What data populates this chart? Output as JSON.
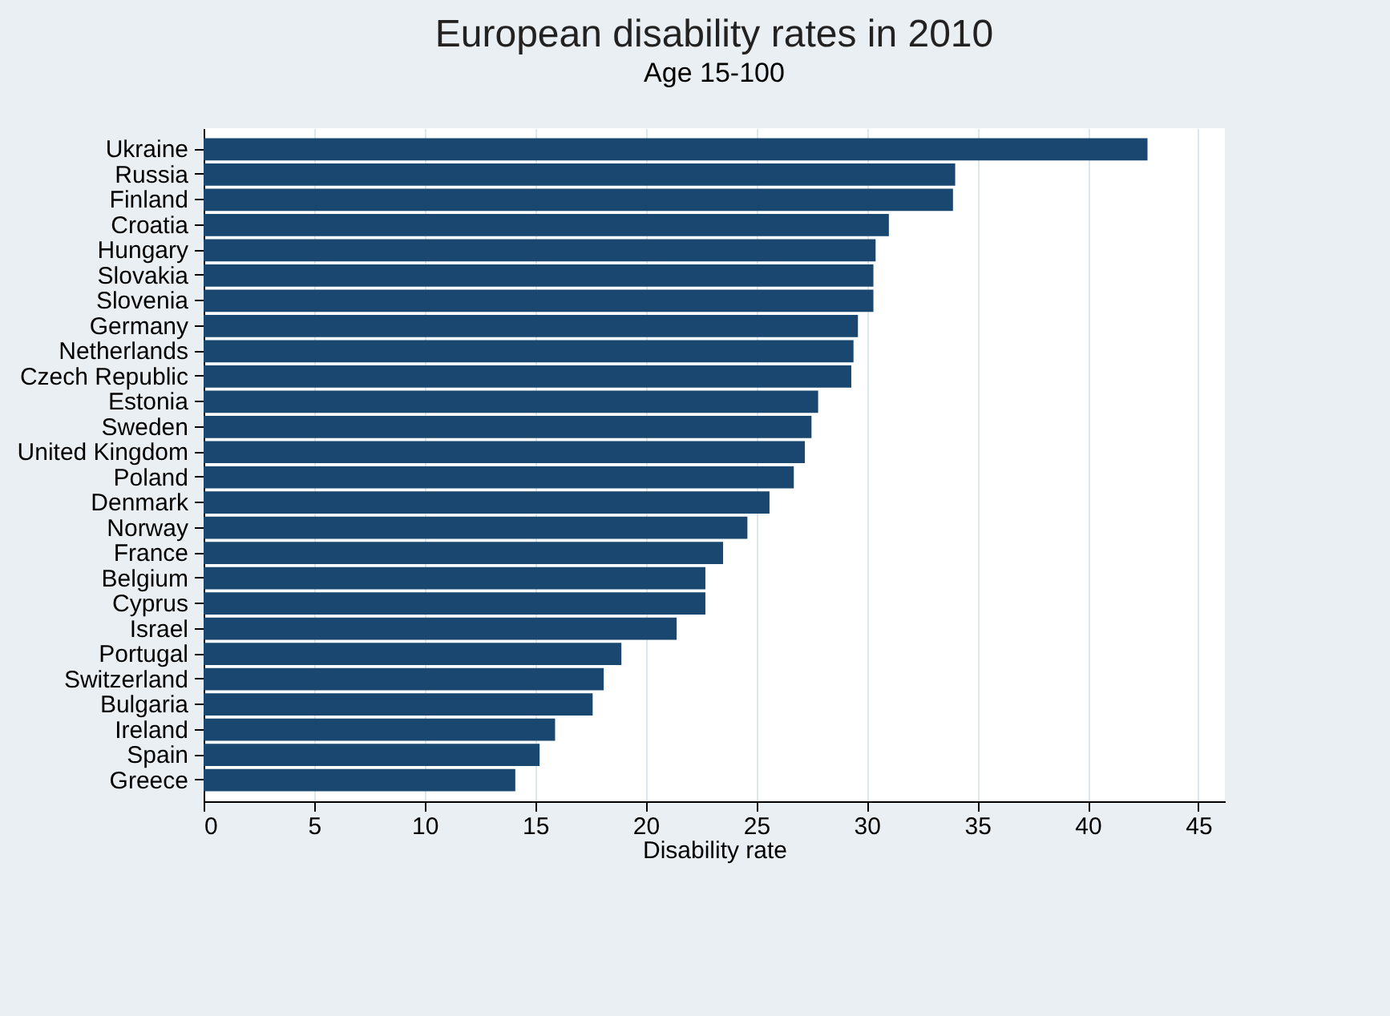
{
  "chart_data": {
    "type": "bar",
    "orientation": "horizontal",
    "title": "European disability rates in 2010",
    "subtitle": "Age 15-100",
    "xlabel": "Disability rate",
    "categories": [
      "Ukraine",
      "Russia",
      "Finland",
      "Croatia",
      "Hungary",
      "Slovakia",
      "Slovenia",
      "Germany",
      "Netherlands",
      "Czech Republic",
      "Estonia",
      "Sweden",
      "United Kingdom",
      "Poland",
      "Denmark",
      "Norway",
      "France",
      "Belgium",
      "Cyprus",
      "Israel",
      "Portugal",
      "Switzerland",
      "Bulgaria",
      "Ireland",
      "Spain",
      "Greece"
    ],
    "values": [
      42.7,
      34.0,
      33.9,
      31.0,
      30.4,
      30.3,
      30.3,
      29.6,
      29.4,
      29.3,
      27.8,
      27.5,
      27.2,
      26.7,
      25.6,
      24.6,
      23.5,
      22.7,
      22.7,
      21.4,
      18.9,
      18.1,
      17.6,
      15.9,
      15.2,
      14.1
    ],
    "color": "#1a4770",
    "xlim": [
      0,
      46.2
    ],
    "xticks": [
      0,
      5,
      10,
      15,
      20,
      25,
      30,
      35,
      40,
      45
    ],
    "grid": "x"
  }
}
